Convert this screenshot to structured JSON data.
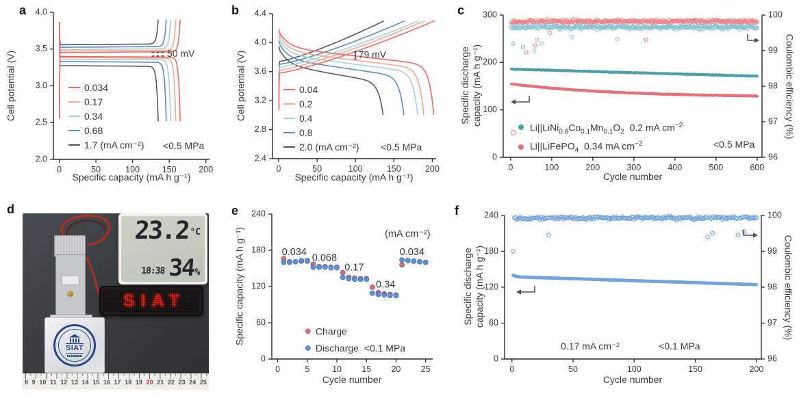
{
  "panel_labels": [
    "a",
    "b",
    "c",
    "d",
    "e",
    "f"
  ],
  "palette": {
    "red": "#EE6A62",
    "salmon": "#F5A98F",
    "lightblue": "#A7D0DD",
    "blue": "#5C8CC7",
    "gray": "#57585C",
    "teal_filled": "#4F9FAB",
    "teal_open": "#86C3D1",
    "red_filled": "#E96E77",
    "red_open": "#F18089",
    "charge_pink": "#CE6E7E",
    "discharge_blue": "#5B92D8",
    "f_blue_open": "#6FA2DB",
    "f_blue_filled": "#7EAFE2",
    "axis": "#2b2b2e",
    "text": "#3a3a3c"
  },
  "chart_data": [
    {
      "id": "a",
      "type": "line",
      "xlabel": "Specific capacity (mA h g⁻¹)",
      "ylabel": "Cell potential (V)",
      "xlim": [
        0,
        200
      ],
      "ylim": [
        2.0,
        4.0
      ],
      "xticks": [
        0,
        50,
        100,
        150,
        200
      ],
      "yticks": [
        "2.0",
        "2.5",
        "3.0",
        "3.5",
        "4.0"
      ],
      "overpotential_label": "50 mV",
      "pressure_label": "<0.5 MPa",
      "series": [
        {
          "rate_label": "0.034",
          "color": "#EE6A62",
          "capacity": 165,
          "charge_plateau": 3.45,
          "discharge_plateau": 3.4
        },
        {
          "rate_label": "0.17",
          "color": "#F5A98F",
          "capacity": 159,
          "charge_plateau": 3.47,
          "discharge_plateau": 3.385
        },
        {
          "rate_label": "0.34",
          "color": "#A7D0DD",
          "capacity": 152,
          "charge_plateau": 3.49,
          "discharge_plateau": 3.365
        },
        {
          "rate_label": "0.68",
          "color": "#5C8CC7",
          "capacity": 146,
          "charge_plateau": 3.52,
          "discharge_plateau": 3.33
        },
        {
          "rate_label": "1.7 (mA cm⁻²)",
          "color": "#57585C",
          "capacity": 135,
          "charge_plateau": 3.555,
          "discharge_plateau": 3.275
        }
      ]
    },
    {
      "id": "b",
      "type": "line",
      "xlabel": "Specific capacity (mA h g⁻¹)",
      "ylabel": "Cell potential (V)",
      "xlim": [
        0,
        200
      ],
      "ylim": [
        2.4,
        4.4
      ],
      "xticks": [
        0,
        50,
        100,
        150,
        200
      ],
      "yticks": [
        "2.4",
        "2.8",
        "3.2",
        "3.6",
        "4.0",
        "4.4"
      ],
      "overpotential_label": "79 mV",
      "pressure_label": "<0.5 MPa",
      "series": [
        {
          "rate_label": "0.04",
          "color": "#EE6A62",
          "capacity": 202,
          "charge_start": 3.58,
          "discharge_start": 4.16
        },
        {
          "rate_label": "0.2",
          "color": "#F5A98F",
          "capacity": 189,
          "charge_start": 3.62,
          "discharge_start": 4.11
        },
        {
          "rate_label": "0.4",
          "color": "#A7D0DD",
          "capacity": 181,
          "charge_start": 3.66,
          "discharge_start": 4.06
        },
        {
          "rate_label": "0.8",
          "color": "#5C8CC7",
          "capacity": 163,
          "charge_start": 3.7,
          "discharge_start": 4.0
        },
        {
          "rate_label": "2.0 (mA cm⁻²)",
          "color": "#57585C",
          "capacity": 136,
          "charge_start": 3.74,
          "discharge_start": 3.92
        }
      ]
    },
    {
      "id": "c",
      "type": "scatter",
      "xlabel": "Cycle number",
      "ylabel_left_html": "Specific discharge<br>capacity (mA h g⁻¹)",
      "ylabel_right": "Coulombic efficiency (%)",
      "xlim": [
        0,
        600
      ],
      "ylim_left": [
        0,
        300
      ],
      "ylim_right": [
        96,
        100
      ],
      "xticks": [
        0,
        100,
        200,
        300,
        400,
        500,
        600
      ],
      "yticks_left": [
        0,
        100,
        200,
        300
      ],
      "yticks_right": [
        96,
        97,
        98,
        99,
        100
      ],
      "pressure_label": "<0.5 MPa",
      "legend": [
        {
          "label_html": "Li||LiNi<sub>0.8</sub>Co<sub>0.1</sub>Mn<sub>0.1</sub>O<sub>2</sub>&nbsp;&nbsp;0.2 mA cm<sup>−2</sup>",
          "markers": [
            "open-red",
            "filled-teal"
          ]
        },
        {
          "label_html": "Li||LiFePO<sub>4</sub>&nbsp;&nbsp;0.34 mA cm<sup>−2</sup>",
          "markers": [
            "filled-red"
          ]
        }
      ],
      "series": [
        {
          "name": "lncm-capacity",
          "axis": "left",
          "marker": "filled",
          "color": "#4F9FAB",
          "model": "linear",
          "start": 186,
          "end": 171,
          "noise": 1.0,
          "cycle_step": 2,
          "cycle_max": 600,
          "seed": 11
        },
        {
          "name": "lfp-capacity",
          "axis": "left",
          "marker": "filled",
          "color": "#E96E77",
          "model": "exp",
          "base": 126.5,
          "amp": 28.5,
          "tau": 260,
          "noise": 0.9,
          "cycle_step": 2,
          "cycle_max": 600,
          "seed": 12
        },
        {
          "name": "lfp-coulombic-efficiency",
          "axis": "right",
          "marker": "open",
          "color": "#F18089",
          "model": "flat",
          "mean": 99.82,
          "noise": 0.07,
          "max": 100.0,
          "cycle_step": 2,
          "cycle_max": 600,
          "seed": 13,
          "outliers": [
            [
              38,
              98.95
            ],
            [
              60,
              99.15
            ],
            [
              96,
              99.5
            ],
            [
              330,
              99.3
            ]
          ]
        },
        {
          "name": "lncm-coulombic-efficiency",
          "axis": "right",
          "marker": "open",
          "color": "#86C3D1",
          "model": "flat",
          "mean": 99.66,
          "noise": 0.09,
          "max": 99.95,
          "cycle_step": 2,
          "cycle_max": 600,
          "seed": 14,
          "outliers": [
            [
              6,
              99.2
            ],
            [
              30,
              99.1
            ],
            [
              58,
              99.0
            ],
            [
              64,
              99.3
            ],
            [
              76,
              99.2
            ],
            [
              150,
              99.38
            ],
            [
              260,
              99.32
            ],
            [
              575,
              99.45
            ]
          ]
        }
      ]
    },
    {
      "id": "e",
      "type": "scatter",
      "xlabel": "Cycle number",
      "ylabel": "Specific capacity (mA h g⁻¹)",
      "xlim": [
        0,
        25
      ],
      "ylim": [
        0,
        240
      ],
      "xticks": [
        0,
        5,
        10,
        15,
        20,
        25
      ],
      "yticks": [
        0,
        60,
        120,
        180,
        240
      ],
      "units_label": "(mA cm⁻²)",
      "pressure_label": "<0.1 MPa",
      "rate_labels": [
        {
          "text": "0.034",
          "x": 0.7,
          "y": 178
        },
        {
          "text": "0.068",
          "x": 5.8,
          "y": 168
        },
        {
          "text": "0.17",
          "x": 11.3,
          "y": 152
        },
        {
          "text": "0.34",
          "x": 16.6,
          "y": 124
        },
        {
          "text": "0.034",
          "x": 20.6,
          "y": 178
        }
      ],
      "legend": [
        {
          "label": "Charge",
          "color": "#CE6E7E"
        },
        {
          "label": "Discharge",
          "color": "#5B92D8"
        }
      ],
      "charge_color": "#CE6E7E",
      "charge_edge": "#A94F63",
      "discharge_color": "#5B92D8",
      "discharge_edge": "#3E6FB5",
      "charge": [
        166,
        161,
        161,
        162,
        162,
        157,
        153,
        153,
        152,
        152,
        143,
        135,
        134,
        133,
        133,
        119,
        110,
        108,
        107,
        106,
        156,
        163,
        162,
        161,
        160
      ],
      "discharge": [
        160,
        160,
        161,
        163,
        163,
        152,
        152,
        152,
        151,
        151,
        135,
        133,
        132,
        132,
        132,
        109,
        107,
        106,
        105,
        105,
        164,
        163,
        162,
        161,
        160
      ]
    },
    {
      "id": "f",
      "type": "scatter",
      "xlabel": "Cycle number",
      "ylabel_left_html": "Specific discharge<br>capacity (mA h g⁻¹)",
      "ylabel_right": "Coulombic efficiency (%)",
      "xlim": [
        0,
        200
      ],
      "ylim_left": [
        0,
        240
      ],
      "ylim_right": [
        96,
        100
      ],
      "xticks": [
        0,
        50,
        100,
        150,
        200
      ],
      "yticks_left": [
        0,
        60,
        120,
        180,
        240
      ],
      "yticks_right": [
        96,
        97,
        98,
        99,
        100
      ],
      "rate_label": "0.17 mA cm⁻²",
      "pressure_label": "<0.1 MPa",
      "series_capacity": {
        "color": "#7EAFE2",
        "edge": "#5B92D8",
        "end": 124.3,
        "slope": 0.066,
        "settle_amp": 4.5,
        "settle_tau": 2.0,
        "noise": 0.35,
        "cycle_max": 200,
        "seed": 21
      },
      "series_ce": {
        "color": "#6FA2DB",
        "mean": 99.93,
        "noise": 0.06,
        "max": 100.05,
        "cycle_max": 200,
        "seed": 22,
        "outliers": [
          [
            1,
            99.0
          ],
          [
            30,
            99.45
          ],
          [
            160,
            99.4
          ],
          [
            164,
            99.5
          ],
          [
            185,
            99.45
          ],
          [
            190,
            99.55
          ]
        ]
      }
    }
  ],
  "photo_panel": {
    "temperature": "23.2",
    "temperature_unit": "°C",
    "clock": "18:38",
    "humidity": "34",
    "humidity_unit": "%",
    "led_badge_text": "SIAT",
    "pouch_seal_text": "SIAT",
    "ruler_numbers": [
      "8",
      "9",
      "10",
      "11",
      "12",
      "13",
      "14",
      "15",
      "16",
      "17",
      "18",
      "19",
      "20",
      "21",
      "22",
      "23",
      "24",
      "25"
    ],
    "ruler_highlight": "20"
  }
}
